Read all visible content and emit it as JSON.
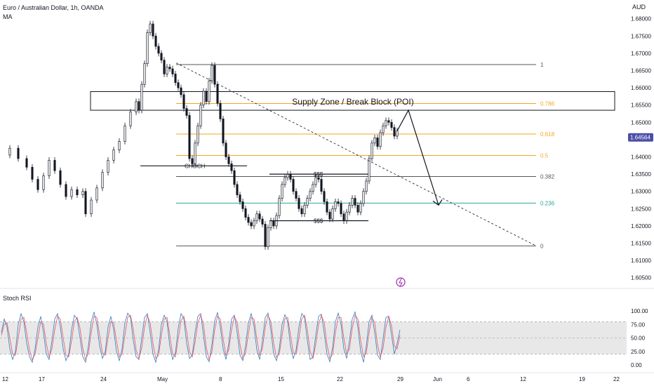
{
  "header": {
    "symbol_title": "Euro / Australian Dollar, 1h, OANDA",
    "indicator": "MA",
    "currency": "AUD"
  },
  "colors": {
    "candle": "#131722",
    "fib_neutral": "#555555",
    "fib_orange": "#f5a623",
    "fib_teal": "#26a69a",
    "stoch_k": "#2f7fb8",
    "stoch_d": "#e5526a",
    "price_tag_bg": "#4a4ea8",
    "alert_icon": "#9c27b0"
  },
  "chart_data": [
    {
      "type": "candlestick",
      "title": "Euro / Australian Dollar, 1h, OANDA",
      "price_axis": {
        "unit": "AUD",
        "ticks": [
          "1.68000",
          "1.67500",
          "1.67000",
          "1.66500",
          "1.66000",
          "1.65500",
          "1.65000",
          "1.64000",
          "1.63500",
          "1.63000",
          "1.62500",
          "1.62000",
          "1.61500",
          "1.61000",
          "1.60500"
        ],
        "range": [
          1.6025,
          1.6838
        ],
        "current_price": "1.64564"
      },
      "time_axis": {
        "ticks": [
          "12",
          "17",
          "24",
          "May",
          "8",
          "15",
          "22",
          "29",
          "Jun",
          "6",
          "12",
          "19",
          "22"
        ]
      },
      "close_path": [
        [
          0,
          1.6405
        ],
        [
          3,
          1.6425
        ],
        [
          6,
          1.6395
        ],
        [
          9,
          1.637
        ],
        [
          11,
          1.6335
        ],
        [
          13,
          1.6305
        ],
        [
          15,
          1.6345
        ],
        [
          17,
          1.639
        ],
        [
          19,
          1.636
        ],
        [
          21,
          1.632
        ],
        [
          23,
          1.6285
        ],
        [
          25,
          1.6305
        ],
        [
          27,
          1.629
        ],
        [
          29,
          1.63
        ],
        [
          30,
          1.6235
        ],
        [
          32,
          1.6275
        ],
        [
          34,
          1.631
        ],
        [
          36,
          1.6355
        ],
        [
          38,
          1.639
        ],
        [
          40,
          1.642
        ],
        [
          42,
          1.6445
        ],
        [
          44,
          1.649
        ],
        [
          46,
          1.653
        ],
        [
          48,
          1.656
        ],
        [
          49,
          1.6535
        ],
        [
          50,
          1.661
        ],
        [
          51,
          1.667
        ],
        [
          52,
          1.676
        ],
        [
          53,
          1.6785
        ],
        [
          54,
          1.675
        ],
        [
          55,
          1.672
        ],
        [
          56,
          1.67
        ],
        [
          57,
          1.668
        ],
        [
          58,
          1.664
        ],
        [
          59,
          1.666
        ],
        [
          60,
          1.6655
        ],
        [
          61,
          1.664
        ],
        [
          62,
          1.6615
        ],
        [
          63,
          1.66
        ],
        [
          64,
          1.658
        ],
        [
          65,
          1.654
        ],
        [
          66,
          1.652
        ],
        [
          67,
          1.6395
        ],
        [
          68,
          1.638
        ],
        [
          69,
          1.644
        ],
        [
          70,
          1.649
        ],
        [
          71,
          1.655
        ],
        [
          72,
          1.659
        ],
        [
          73,
          1.656
        ],
        [
          74,
          1.662
        ],
        [
          75,
          1.6665
        ],
        [
          76,
          1.661
        ],
        [
          77,
          1.6555
        ],
        [
          78,
          1.651
        ],
        [
          79,
          1.644
        ],
        [
          80,
          1.64
        ],
        [
          81,
          1.638
        ],
        [
          82,
          1.636
        ],
        [
          83,
          1.632
        ],
        [
          84,
          1.629
        ],
        [
          85,
          1.627
        ],
        [
          86,
          1.625
        ],
        [
          87,
          1.6225
        ],
        [
          88,
          1.621
        ],
        [
          89,
          1.62
        ],
        [
          90,
          1.6215
        ],
        [
          91,
          1.6235
        ],
        [
          92,
          1.622
        ],
        [
          93,
          1.6205
        ],
        [
          94,
          1.614
        ],
        [
          95,
          1.6195
        ],
        [
          96,
          1.6215
        ],
        [
          97,
          1.62
        ],
        [
          98,
          1.623
        ],
        [
          99,
          1.628
        ],
        [
          100,
          1.632
        ],
        [
          101,
          1.634
        ],
        [
          102,
          1.635
        ],
        [
          103,
          1.6335
        ],
        [
          104,
          1.63
        ],
        [
          105,
          1.628
        ],
        [
          106,
          1.625
        ],
        [
          107,
          1.6235
        ],
        [
          108,
          1.626
        ],
        [
          109,
          1.628
        ],
        [
          110,
          1.63
        ],
        [
          111,
          1.632
        ],
        [
          112,
          1.634
        ],
        [
          113,
          1.6335
        ],
        [
          114,
          1.63
        ],
        [
          115,
          1.627
        ],
        [
          116,
          1.624
        ],
        [
          117,
          1.622
        ],
        [
          118,
          1.625
        ],
        [
          119,
          1.627
        ],
        [
          120,
          1.6265
        ],
        [
          121,
          1.6235
        ],
        [
          122,
          1.6215
        ],
        [
          123,
          1.624
        ],
        [
          124,
          1.626
        ],
        [
          125,
          1.628
        ],
        [
          126,
          1.626
        ],
        [
          127,
          1.624
        ],
        [
          128,
          1.6265
        ],
        [
          129,
          1.63
        ],
        [
          130,
          1.633
        ],
        [
          131,
          1.6395
        ],
        [
          132,
          1.644
        ],
        [
          133,
          1.6455
        ],
        [
          134,
          1.643
        ],
        [
          135,
          1.647
        ],
        [
          136,
          1.649
        ],
        [
          137,
          1.6505
        ],
        [
          138,
          1.65
        ],
        [
          139,
          1.6485
        ],
        [
          140,
          1.646
        ],
        [
          141,
          1.6475
        ]
      ],
      "fibonacci": {
        "levels": [
          {
            "label": "1",
            "value": 1.66672
          },
          {
            "label": "0.786",
            "value": 1.65545
          },
          {
            "label": "0.618",
            "value": 1.6466
          },
          {
            "label": "0.5",
            "value": 1.6404
          },
          {
            "label": "0.382",
            "value": 1.6343
          },
          {
            "label": "0.236",
            "value": 1.6266
          },
          {
            "label": "0",
            "value": 1.61422
          }
        ]
      },
      "annotations": {
        "supply_zone_label": "Supply Zone / Break Block (POI)",
        "supply_zone_range": [
          1.6535,
          1.6589
        ],
        "choch_label": "CHOCH",
        "choch_price": 1.6374,
        "sss_top_label": "$$$",
        "sss_top_price": 1.635,
        "sss_bottom_label": "$$$",
        "sss_bottom_price": 1.6215,
        "trendline": {
          "from": [
            1.6672
          ],
          "to": [
            1.61422
          ]
        },
        "projection": [
          1.6535,
          1.626
        ]
      }
    },
    {
      "type": "line",
      "title": "Stoch RSI",
      "y_ticks": [
        "100.00",
        "75.00",
        "50.00",
        "25.00",
        "0.00"
      ],
      "ylim": [
        0,
        100
      ],
      "band": [
        20,
        80
      ],
      "series": [
        {
          "values": [
            60,
            85,
            70,
            30,
            10,
            25,
            75,
            95,
            80,
            40,
            15,
            5,
            30,
            70,
            90,
            60,
            20,
            10,
            45,
            85,
            95,
            70,
            30,
            8,
            20,
            65,
            92,
            85,
            50,
            15,
            5,
            35,
            80,
            98,
            75,
            35,
            12,
            25,
            70,
            90,
            65,
            25,
            8,
            30,
            78,
            96,
            88,
            45,
            15,
            10,
            50,
            88,
            95,
            60,
            20,
            5,
            28,
            75,
            92,
            80,
            35,
            10,
            22,
            68,
            95,
            85,
            40,
            12,
            18,
            60,
            90,
            95,
            55,
            15,
            6,
            38,
            82,
            97,
            70,
            30,
            10,
            40,
            85,
            92,
            60,
            18,
            8,
            35,
            78,
            95,
            72,
            28,
            10,
            45,
            88,
            96,
            65,
            20,
            8,
            30,
            75,
            93,
            80,
            35,
            12,
            28,
            70,
            95,
            88,
            45,
            10,
            15,
            55,
            90,
            94,
            60,
            20,
            6,
            32,
            80,
            96,
            75,
            30,
            12,
            45,
            85,
            98,
            70,
            25,
            5,
            35,
            80,
            92,
            60,
            18,
            10,
            50,
            88,
            90,
            55,
            20,
            40,
            65
          ]
        },
        {
          "values": [
            55,
            75,
            78,
            50,
            20,
            18,
            50,
            85,
            88,
            60,
            28,
            10,
            20,
            50,
            80,
            75,
            40,
            15,
            30,
            65,
            90,
            85,
            50,
            18,
            15,
            45,
            80,
            88,
            68,
            30,
            10,
            22,
            60,
            90,
            88,
            55,
            22,
            18,
            50,
            80,
            78,
            45,
            15,
            20,
            55,
            88,
            92,
            65,
            28,
            12,
            32,
            70,
            92,
            78,
            40,
            12,
            18,
            55,
            85,
            88,
            55,
            20,
            15,
            48,
            82,
            90,
            62,
            25,
            15,
            42,
            78,
            92,
            75,
            32,
            10,
            25,
            65,
            90,
            85,
            48,
            18,
            28,
            65,
            90,
            78,
            38,
            12,
            22,
            58,
            88,
            85,
            48,
            18,
            30,
            70,
            92,
            80,
            40,
            14,
            20,
            55,
            85,
            88,
            55,
            22,
            20,
            50,
            85,
            92,
            65,
            25,
            12,
            38,
            75,
            92,
            78,
            38,
            12,
            20,
            60,
            88,
            88,
            50,
            20,
            30,
            68,
            92,
            85,
            45,
            15,
            22,
            60,
            88,
            78,
            38,
            14,
            32,
            70,
            90,
            72,
            35,
            30,
            55
          ]
        }
      ]
    }
  ],
  "alert_icon": "lightning-icon"
}
